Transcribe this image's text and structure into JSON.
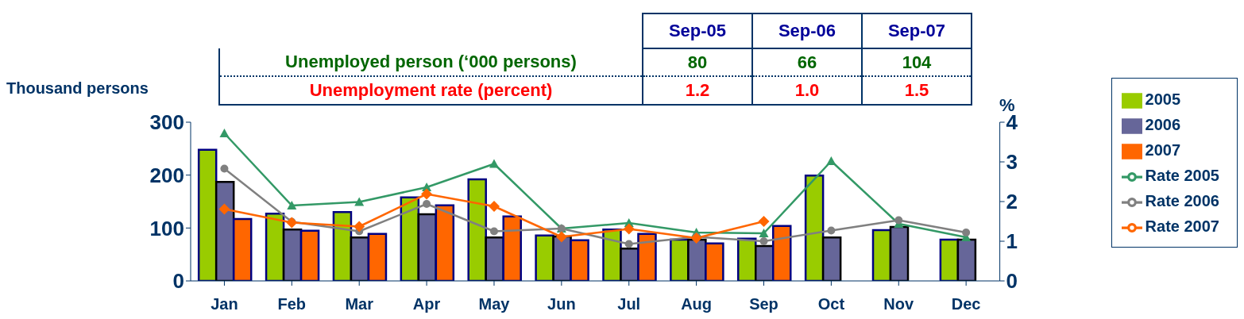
{
  "chart_data": {
    "type": "bar",
    "ylabel": "Thousand persons",
    "y2label": "%",
    "categories": [
      "Jan",
      "Feb",
      "Mar",
      "Apr",
      "May",
      "Jun",
      "Jul",
      "Aug",
      "Sep",
      "Oct",
      "Nov",
      "Dec"
    ],
    "series": [
      {
        "name": "2005",
        "color": "#99cc00",
        "values": [
          248,
          127,
          130,
          158,
          192,
          86,
          97,
          78,
          80,
          199,
          96,
          78
        ]
      },
      {
        "name": "2006",
        "color": "#666699",
        "values": [
          187,
          97,
          82,
          126,
          82,
          84,
          61,
          78,
          66,
          82,
          102,
          78
        ]
      },
      {
        "name": "2007",
        "color": "#ff6600",
        "values": [
          117,
          95,
          89,
          143,
          122,
          77,
          89,
          71,
          104,
          null,
          null,
          null
        ]
      },
      {
        "name": "Rate 2005",
        "type": "line",
        "axis": "y2",
        "marker": "triangle",
        "color": "#339966",
        "values": [
          3.72,
          1.9,
          1.99,
          2.36,
          2.95,
          1.32,
          1.46,
          1.22,
          1.2,
          3.02,
          1.44,
          1.1
        ]
      },
      {
        "name": "Rate 2006",
        "type": "line",
        "axis": "y2",
        "marker": "circle",
        "color": "#808080",
        "values": [
          2.83,
          1.49,
          1.25,
          1.94,
          1.25,
          1.32,
          0.93,
          1.11,
          1.0,
          1.27,
          1.53,
          1.22
        ]
      },
      {
        "name": "Rate 2007",
        "type": "line",
        "axis": "y2",
        "marker": "diamond",
        "color": "#ff6600",
        "values": [
          1.81,
          1.47,
          1.37,
          2.19,
          1.88,
          1.11,
          1.31,
          1.08,
          1.5,
          null,
          null,
          null
        ]
      }
    ],
    "ylim": [
      0,
      300
    ],
    "yticks": [
      0,
      100,
      200,
      300
    ],
    "y2lim": [
      0,
      4
    ],
    "y2ticks": [
      0,
      1,
      2,
      3,
      4
    ],
    "legend": "right",
    "grid": false,
    "annotations": [
      "Sep-05",
      "Sep-06",
      "Sep-07",
      "Unemployed person (‘000 persons)",
      "80",
      "66",
      "104",
      "Unemployment rate (percent)",
      "1.2",
      "1.0",
      "1.5"
    ]
  }
}
